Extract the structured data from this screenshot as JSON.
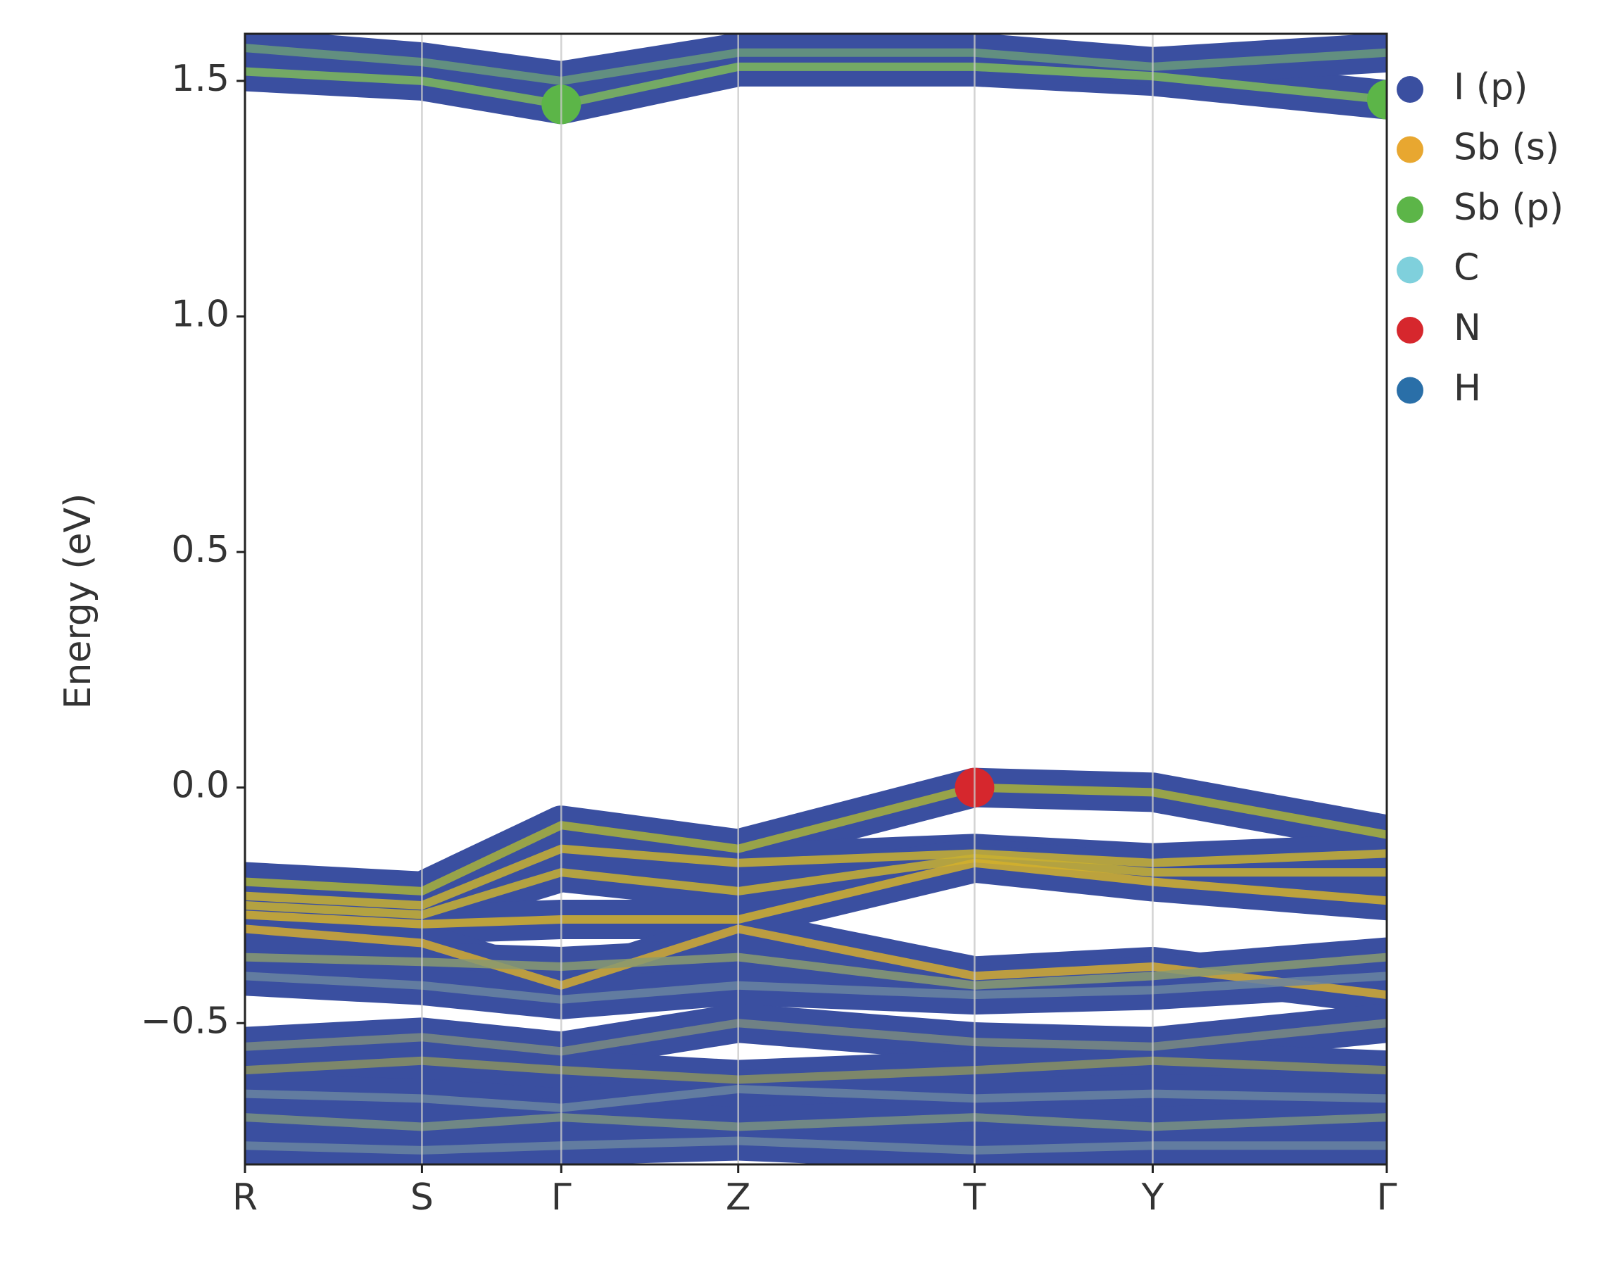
{
  "chart_data": {
    "type": "line",
    "ylabel": "Energy (eV)",
    "xlim": [
      0,
      1
    ],
    "xticks": [
      {
        "value": 0,
        "label": "R"
      },
      {
        "value": 0.155,
        "label": "S"
      },
      {
        "value": 0.277,
        "label": "Γ"
      },
      {
        "value": 0.432,
        "label": "Z"
      },
      {
        "value": 0.639,
        "label": "T"
      },
      {
        "value": 0.795,
        "label": "Y"
      },
      {
        "value": 1,
        "label": "Γ"
      }
    ],
    "ylim": [
      -0.8,
      1.6
    ],
    "yticks": [
      {
        "value": -0.5,
        "label": "−0.5"
      },
      {
        "value": 0,
        "label": "0.0"
      },
      0.5,
      {
        "value": 1,
        "label": "1.0"
      },
      1.5
    ],
    "grid": true,
    "x": [
      0,
      0.155,
      0.277,
      0.432,
      0.639,
      0.795,
      1
    ],
    "bands": [
      {
        "color": "#7fb85a",
        "values": [
          1.52,
          1.5,
          1.45,
          1.53,
          1.53,
          1.51,
          1.46
        ]
      },
      {
        "color": "#6a9a7a",
        "values": [
          1.57,
          1.54,
          1.5,
          1.56,
          1.56,
          1.53,
          1.56
        ]
      },
      {
        "color": "#a9b23a",
        "values": [
          -0.2,
          -0.22,
          -0.08,
          -0.13,
          0,
          -0.01,
          -0.1
        ]
      },
      {
        "color": "#c9b030",
        "values": [
          -0.23,
          -0.25,
          -0.13,
          -0.16,
          -0.14,
          -0.16,
          -0.14
        ]
      },
      {
        "color": "#c9b030",
        "values": [
          -0.25,
          -0.27,
          -0.18,
          -0.22,
          -0.15,
          -0.18,
          -0.18
        ]
      },
      {
        "color": "#d4b02c",
        "values": [
          -0.27,
          -0.29,
          -0.28,
          -0.28,
          -0.16,
          -0.2,
          -0.24
        ]
      },
      {
        "color": "#d4aa30",
        "values": [
          -0.3,
          -0.33,
          -0.42,
          -0.3,
          -0.4,
          -0.38,
          -0.44
        ]
      },
      {
        "color": "#8a9a70",
        "values": [
          -0.36,
          -0.37,
          -0.38,
          -0.36,
          -0.42,
          -0.4,
          -0.36
        ]
      },
      {
        "color": "#6a84a0",
        "values": [
          -0.4,
          -0.42,
          -0.45,
          -0.42,
          -0.44,
          -0.43,
          -0.4
        ]
      },
      {
        "color": "#7a8a80",
        "values": [
          -0.55,
          -0.53,
          -0.56,
          -0.5,
          -0.54,
          -0.55,
          -0.5
        ]
      },
      {
        "color": "#8a9060",
        "values": [
          -0.6,
          -0.58,
          -0.6,
          -0.62,
          -0.6,
          -0.58,
          -0.6
        ]
      },
      {
        "color": "#6a84a0",
        "values": [
          -0.65,
          -0.66,
          -0.68,
          -0.64,
          -0.66,
          -0.65,
          -0.66
        ]
      },
      {
        "color": "#7a9080",
        "values": [
          -0.7,
          -0.72,
          -0.7,
          -0.72,
          -0.7,
          -0.72,
          -0.7
        ]
      },
      {
        "color": "#6a84a0",
        "values": [
          -0.76,
          -0.77,
          -0.76,
          -0.75,
          -0.77,
          -0.76,
          -0.76
        ]
      }
    ],
    "highlights": [
      {
        "x": 0.277,
        "y": 1.45,
        "color": "#5cb548"
      },
      {
        "x": 1,
        "y": 1.46,
        "color": "#5cb548"
      },
      {
        "x": 0.639,
        "y": 0,
        "color": "#d6272d"
      }
    ],
    "legend": [
      {
        "name": "I (p)",
        "color": "#3a4fa0"
      },
      {
        "name": "Sb (s)",
        "color": "#e8a730"
      },
      {
        "name": "Sb (p)",
        "color": "#5cb548"
      },
      {
        "name": "C",
        "color": "#7fd0dc"
      },
      {
        "name": "N",
        "color": "#d6272d"
      },
      {
        "name": "H",
        "color": "#2a6fa8"
      }
    ]
  }
}
